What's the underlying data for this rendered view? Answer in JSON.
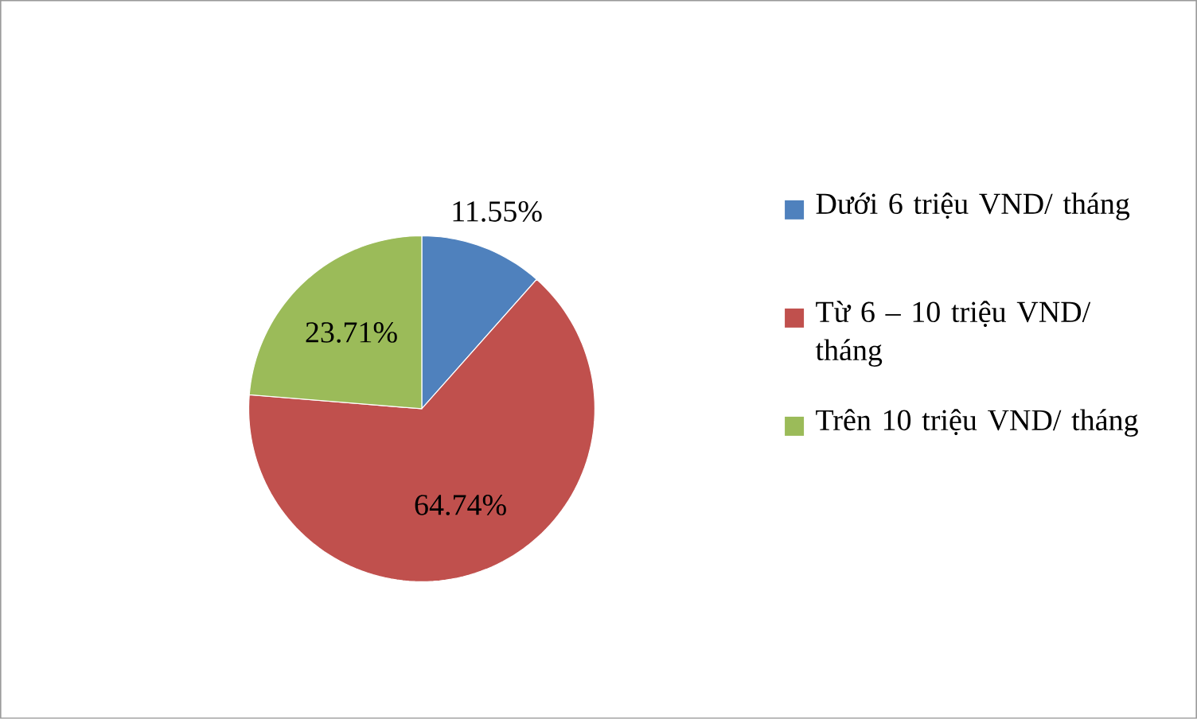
{
  "chart_data": {
    "type": "pie",
    "categories": [
      "Dưới 6 triệu VND/ tháng",
      "Từ 6 – 10 triệu VND/ tháng",
      "Trên 10 triệu VND/ tháng"
    ],
    "values": [
      11.55,
      64.74,
      23.71
    ],
    "colors": [
      "#4f81bd",
      "#c0504d",
      "#9bbb59"
    ],
    "value_labels": [
      "11.55%",
      "64.74%",
      "23.71%"
    ],
    "legend": "right"
  }
}
